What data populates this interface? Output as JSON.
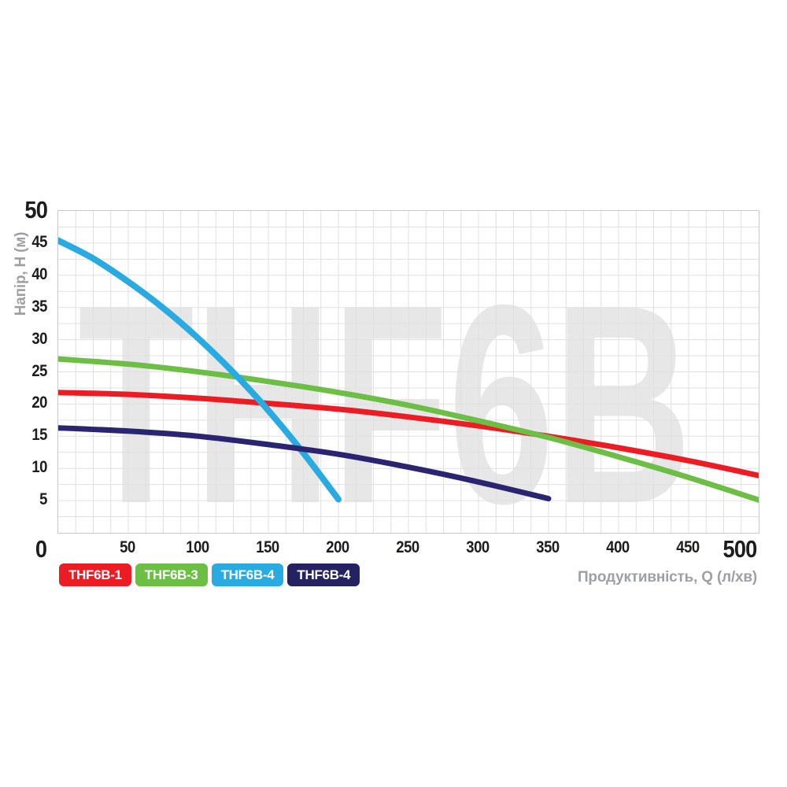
{
  "chart_data": {
    "type": "line",
    "watermark": "THF6B",
    "xlabel": "Продуктивність, Q (л/хв)",
    "ylabel": "Напір, H (м)",
    "xlim": [
      0,
      500
    ],
    "ylim": [
      0,
      50
    ],
    "x_ticks": [
      0,
      50,
      100,
      150,
      200,
      250,
      300,
      350,
      400,
      450,
      500
    ],
    "y_ticks": [
      5,
      10,
      15,
      20,
      25,
      30,
      35,
      40,
      45,
      50
    ],
    "grid": {
      "on": true,
      "minor_x_step": 12.5,
      "minor_y_step": 2.5,
      "color": "#e0e0e0"
    },
    "legend_position": "bottom-left",
    "series": [
      {
        "name": "THF6B-1",
        "color": "#ec1c24",
        "stroke_width": 7,
        "points": [
          [
            0,
            21.8
          ],
          [
            50,
            21.5
          ],
          [
            100,
            20.9
          ],
          [
            150,
            20.1
          ],
          [
            200,
            19.2
          ],
          [
            250,
            18.0
          ],
          [
            300,
            16.6
          ],
          [
            350,
            15.0
          ],
          [
            400,
            13.2
          ],
          [
            450,
            11.2
          ],
          [
            500,
            8.9
          ]
        ]
      },
      {
        "name": "THF6B-3",
        "color": "#6cbe45",
        "stroke_width": 7,
        "points": [
          [
            0,
            27.0
          ],
          [
            50,
            26.2
          ],
          [
            100,
            25.0
          ],
          [
            150,
            23.5
          ],
          [
            200,
            21.8
          ],
          [
            250,
            19.8
          ],
          [
            300,
            17.4
          ],
          [
            350,
            14.8
          ],
          [
            400,
            11.8
          ],
          [
            450,
            8.6
          ],
          [
            500,
            5.1
          ]
        ]
      },
      {
        "name": "THF6B-4",
        "color": "#29abe2",
        "stroke_width": 8,
        "points": [
          [
            0,
            45.4
          ],
          [
            25,
            42.6
          ],
          [
            50,
            39.0
          ],
          [
            75,
            34.9
          ],
          [
            100,
            30.2
          ],
          [
            125,
            24.9
          ],
          [
            150,
            19.0
          ],
          [
            175,
            12.4
          ],
          [
            200,
            5.2
          ]
        ]
      },
      {
        "name": "THF6B-4",
        "color": "#2b2470",
        "stroke_width": 7,
        "points": [
          [
            0,
            16.3
          ],
          [
            50,
            15.8
          ],
          [
            100,
            15.0
          ],
          [
            150,
            13.7
          ],
          [
            200,
            12.2
          ],
          [
            250,
            10.2
          ],
          [
            300,
            7.9
          ],
          [
            350,
            5.3
          ]
        ]
      }
    ],
    "legend": [
      {
        "label": "THF6B-1",
        "color": "#ec1c24"
      },
      {
        "label": "THF6B-3",
        "color": "#6cbe45"
      },
      {
        "label": "THF6B-4",
        "color": "#29abe2"
      },
      {
        "label": "THF6B-4",
        "color": "#252262"
      }
    ]
  },
  "style": {
    "watermark_color": "#e7e7e7",
    "grid_color": "#e0e0e0",
    "tick_color": "#1d1d1b",
    "axis_title_color": "#9ea0a3"
  }
}
